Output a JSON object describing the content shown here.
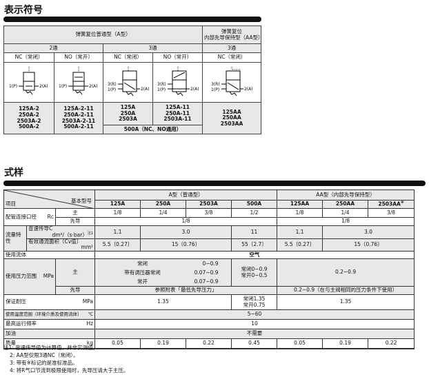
{
  "symbols_section": {
    "title": "表示符号",
    "header_a": "弹簧复位普通型（A型）",
    "header_aa_1": "弹簧复位",
    "header_aa_2": "内部先导保持型（AA型）",
    "two_way": "2通",
    "three_way": "3通",
    "three_way_aa": "3通",
    "nc": "NC（常闭）",
    "no": "NO（常开）",
    "port_p": "1(P)",
    "port_a": "2(A)",
    "port_r": "3(R)",
    "models": {
      "nc2": [
        "125A-2",
        "250A-2",
        "2503A-2",
        "500A-2"
      ],
      "no2": [
        "125A-2-11",
        "250A-2-11",
        "2503A-2-11",
        "500A-2-11"
      ],
      "nc3": [
        "125A",
        "250A",
        "2503A"
      ],
      "no3": [
        "125A-11",
        "250A-11",
        "2503A-11"
      ],
      "common": "500A（NC、NO通用）",
      "aa": [
        "125AA",
        "250AA",
        "2503AA"
      ]
    }
  },
  "spec_section": {
    "title": "式样",
    "item": "项目",
    "base_model": "基本型号",
    "a_type": "A型（普通型）",
    "aa_type": "AA型（内部先导保持型）",
    "models": [
      "125A",
      "250A",
      "2503A",
      "500A",
      "125AA",
      "250AA",
      "2503AA"
    ],
    "model_mark": "※",
    "port": {
      "label": "配管连接口径",
      "unit": "Rc",
      "main": "主",
      "pilot": "先导",
      "main_values": [
        "1/8",
        "1/4",
        "3/8",
        "1/2",
        "1/8",
        "1/4",
        "3/8"
      ],
      "pilot_a": "1/8",
      "pilot_aa": "1/8"
    },
    "flow": {
      "label": "流量特性",
      "sonic": "音速传导C",
      "sonic_unit": "dm³/（s·bar）",
      "sonic_note": "注1",
      "sonic_values": [
        "1.1",
        "3.0",
        "11",
        "1.1",
        "3.0"
      ],
      "cv": "有效通流面积〔Cv值〕",
      "cv_unit": "mm²",
      "cv_values": [
        "5.5〔0.27〕",
        "15〔0.76〕",
        "55〔2.7〕",
        "5.5〔0.27〕",
        "15〔0.76〕"
      ]
    },
    "fluid": {
      "label": "使用流体",
      "value": "空气"
    },
    "pressure": {
      "label": "使用压力范围",
      "unit": "MPa",
      "main": "主",
      "pilot": "先导",
      "a_rows": [
        [
          "常闭",
          "0~0.9"
        ],
        [
          "带有调压器常闭",
          "0.07~0.9"
        ],
        [
          "常开",
          "0.07~0.9"
        ]
      ],
      "v500": [
        "常闭0~0.9",
        "常开0~0.5"
      ],
      "aa": "0.2~0.9",
      "pilot_a": "参照附表「最低先导压力」",
      "pilot_aa": "0.2~0.9（在与主阀相同的压力条件下使用）"
    },
    "proof": {
      "label": "保证耐压",
      "unit": "MPa",
      "a": "1.35",
      "v500": [
        "常闭1.35",
        "常开0.75"
      ],
      "aa": "1.35"
    },
    "temp": {
      "label": "使用温度范围（环境介质及使用流体）",
      "unit": "℃",
      "value": "5~60"
    },
    "freq": {
      "label": "最高运行频率",
      "unit": "Hz",
      "value": "10"
    },
    "lube": {
      "label": "加油",
      "value": "不需要"
    },
    "mass": {
      "label": "质量",
      "unit": "kg",
      "values": [
        "0.05",
        "0.19",
        "0.22",
        "0.45",
        "0.05",
        "0.19",
        "0.22"
      ]
    },
    "notes": [
      "注1:  音速传导值为计算值，并非实测值。",
      "2:  AA型仅限3通NC（常闭）。",
      "3:  带有※标记的是准标准品。",
      "4:  将R气口节流到极限使用时，先导压请大于主压。"
    ]
  }
}
